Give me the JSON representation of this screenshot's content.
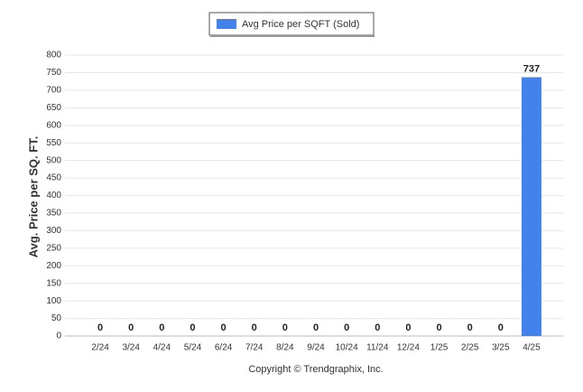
{
  "chart_data": {
    "type": "bar",
    "legend_title": "Avg Price per SQFT (Sold)",
    "y_label": "Avg. Price per SQ. FT.",
    "caption": "Copyright © Trendgraphix, Inc.",
    "categories": [
      "2/24",
      "3/24",
      "4/24",
      "5/24",
      "6/24",
      "7/24",
      "8/24",
      "9/24",
      "10/24",
      "11/24",
      "12/24",
      "1/25",
      "2/25",
      "3/25",
      "4/25"
    ],
    "series": [
      {
        "name": "Avg Price per SQFT (Sold)",
        "color": "#4282ea",
        "values": [
          0,
          0,
          0,
          0,
          0,
          0,
          0,
          0,
          0,
          0,
          0,
          0,
          0,
          0,
          737
        ]
      }
    ],
    "ylim": [
      0,
      800
    ],
    "yticks": [
      0,
      50,
      100,
      150,
      200,
      250,
      300,
      350,
      400,
      450,
      500,
      550,
      600,
      650,
      700,
      750,
      800
    ],
    "grid": true,
    "legend": "top"
  }
}
